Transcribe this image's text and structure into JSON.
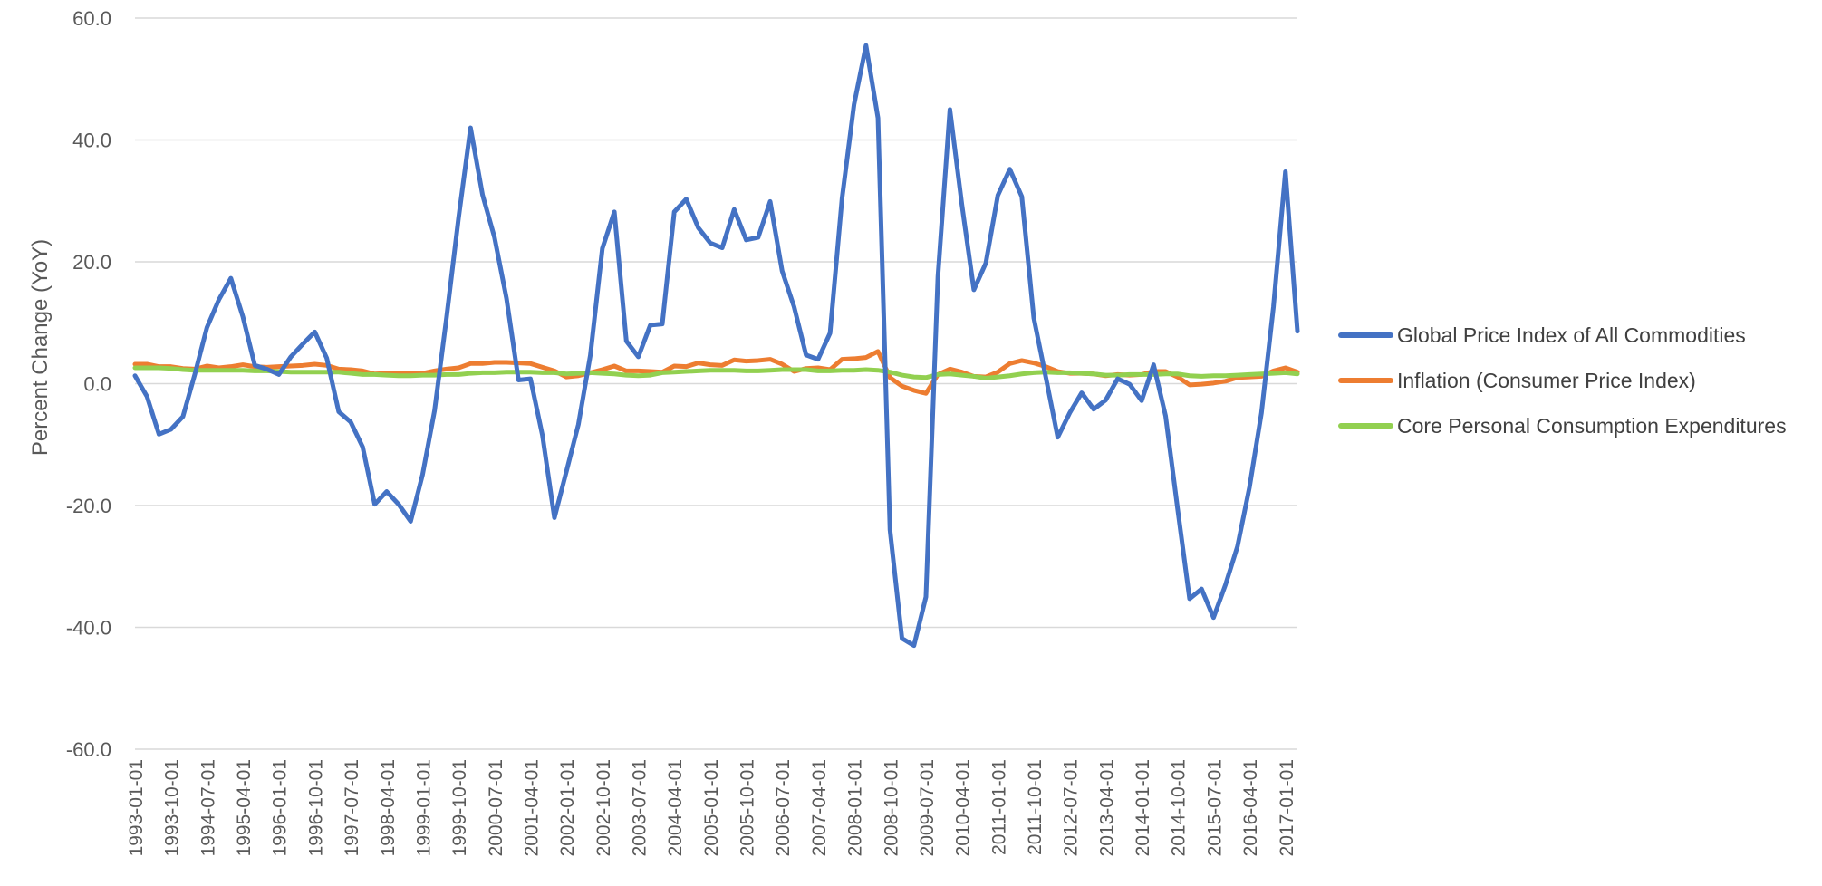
{
  "chart_data": {
    "type": "line",
    "title": "",
    "xlabel": "",
    "ylabel": "Percent Change (YoY)",
    "ylim": [
      -60,
      60
    ],
    "yticks": [
      -60.0,
      -40.0,
      -20.0,
      0.0,
      20.0,
      40.0,
      60.0
    ],
    "ytick_labels": [
      "-60.0",
      "-40.0",
      "-20.0",
      "0.0",
      "20.0",
      "40.0",
      "60.0"
    ],
    "grid": true,
    "legend_position": "right",
    "x": [
      "1993-01-01",
      "1993-04-01",
      "1993-07-01",
      "1993-10-01",
      "1994-01-01",
      "1994-04-01",
      "1994-07-01",
      "1994-10-01",
      "1995-01-01",
      "1995-04-01",
      "1995-07-01",
      "1995-10-01",
      "1996-01-01",
      "1996-04-01",
      "1996-07-01",
      "1996-10-01",
      "1997-01-01",
      "1997-04-01",
      "1997-07-01",
      "1997-10-01",
      "1998-01-01",
      "1998-04-01",
      "1998-07-01",
      "1998-10-01",
      "1999-01-01",
      "1999-04-01",
      "1999-07-01",
      "1999-10-01",
      "2000-01-01",
      "2000-04-01",
      "2000-07-01",
      "2000-10-01",
      "2001-01-01",
      "2001-04-01",
      "2001-07-01",
      "2001-10-01",
      "2002-01-01",
      "2002-04-01",
      "2002-07-01",
      "2002-10-01",
      "2003-01-01",
      "2003-04-01",
      "2003-07-01",
      "2003-10-01",
      "2004-01-01",
      "2004-04-01",
      "2004-07-01",
      "2004-10-01",
      "2005-01-01",
      "2005-04-01",
      "2005-07-01",
      "2005-10-01",
      "2006-01-01",
      "2006-04-01",
      "2006-07-01",
      "2006-10-01",
      "2007-01-01",
      "2007-04-01",
      "2007-07-01",
      "2007-10-01",
      "2008-01-01",
      "2008-04-01",
      "2008-07-01",
      "2008-10-01",
      "2009-01-01",
      "2009-04-01",
      "2009-07-01",
      "2009-10-01",
      "2010-01-01",
      "2010-04-01",
      "2010-07-01",
      "2010-10-01",
      "2011-01-01",
      "2011-04-01",
      "2011-07-01",
      "2011-10-01",
      "2012-01-01",
      "2012-04-01",
      "2012-07-01",
      "2012-10-01",
      "2013-01-01",
      "2013-04-01",
      "2013-07-01",
      "2013-10-01",
      "2014-01-01",
      "2014-04-01",
      "2014-07-01",
      "2014-10-01",
      "2015-01-01",
      "2015-04-01",
      "2015-07-01",
      "2015-10-01",
      "2016-01-01",
      "2016-04-01",
      "2016-07-01",
      "2016-10-01",
      "2017-01-01",
      "2017-04-01"
    ],
    "xtick_labels": [
      "1993-01-01",
      "1993-10-01",
      "1994-07-01",
      "1995-04-01",
      "1996-01-01",
      "1996-10-01",
      "1997-07-01",
      "1998-04-01",
      "1999-01-01",
      "1999-10-01",
      "2000-07-01",
      "2001-04-01",
      "2002-01-01",
      "2002-10-01",
      "2003-07-01",
      "2004-04-01",
      "2005-01-01",
      "2005-10-01",
      "2006-07-01",
      "2007-04-01",
      "2008-01-01",
      "2008-10-01",
      "2009-07-01",
      "2010-04-01",
      "2011-01-01",
      "2011-10-01",
      "2012-07-01",
      "2013-04-01",
      "2014-01-01",
      "2014-10-01",
      "2015-07-01",
      "2016-04-01",
      "2017-01-01"
    ],
    "series": [
      {
        "name": "Global Price Index of All Commodities",
        "color": "#4472C4",
        "values": [
          1.3,
          -2.1,
          -8.3,
          -7.5,
          -5.4,
          1.6,
          9.2,
          13.8,
          17.3,
          11.0,
          3.0,
          2.4,
          1.5,
          4.4,
          6.5,
          8.5,
          4.2,
          -4.6,
          -6.3,
          -10.4,
          -19.8,
          -17.7,
          -19.8,
          -22.6,
          -14.9,
          -4.4,
          10.9,
          27.2,
          42.0,
          31.0,
          24.0,
          14.0,
          0.6,
          0.8,
          -8.5,
          -22.0,
          -14.4,
          -6.7,
          4.7,
          22.2,
          28.2,
          7.0,
          4.4,
          9.6,
          9.8,
          28.2,
          30.3,
          25.6,
          23.1,
          22.3,
          28.6,
          23.6,
          24.0,
          29.9,
          18.5,
          12.6,
          4.7,
          4.0,
          8.3,
          30.4,
          45.8,
          55.5,
          43.6,
          -24.0,
          -41.8,
          -43.0,
          -35.0,
          17.6,
          45.0,
          29.4,
          15.4,
          19.8,
          30.9,
          35.2,
          30.7,
          10.8,
          1.1,
          -8.8,
          -4.8,
          -1.5,
          -4.2,
          -2.7,
          0.8,
          -0.1,
          -2.8,
          3.1,
          -5.3,
          -20.5,
          -35.3,
          -33.7,
          -38.4,
          -33.0,
          -26.7,
          -17.0,
          -4.8,
          12.6,
          34.8,
          8.6
        ]
      },
      {
        "name": "Inflation (Consumer Price Index)",
        "color": "#ED7D31",
        "values": [
          3.2,
          3.2,
          2.8,
          2.8,
          2.5,
          2.4,
          2.9,
          2.6,
          2.8,
          3.1,
          2.8,
          2.7,
          2.8,
          2.9,
          3.0,
          3.2,
          3.0,
          2.4,
          2.3,
          2.1,
          1.6,
          1.7,
          1.7,
          1.7,
          1.7,
          2.1,
          2.4,
          2.6,
          3.3,
          3.3,
          3.5,
          3.5,
          3.4,
          3.3,
          2.7,
          2.1,
          1.1,
          1.3,
          1.8,
          2.3,
          2.9,
          2.1,
          2.1,
          2.0,
          1.9,
          2.9,
          2.8,
          3.4,
          3.1,
          3.0,
          3.9,
          3.7,
          3.8,
          4.0,
          3.2,
          2.0,
          2.5,
          2.6,
          2.3,
          4.0,
          4.1,
          4.3,
          5.3,
          1.0,
          -0.4,
          -1.1,
          -1.6,
          1.5,
          2.4,
          1.9,
          1.2,
          1.1,
          1.9,
          3.3,
          3.8,
          3.4,
          2.8,
          2.0,
          1.7,
          1.7,
          1.6,
          1.3,
          1.5,
          1.4,
          1.5,
          2.0,
          2.0,
          1.1,
          -0.2,
          -0.1,
          0.1,
          0.4,
          1.0,
          1.1,
          1.2,
          2.1,
          2.6,
          1.9
        ]
      },
      {
        "name": "Core Personal Consumption Expenditures",
        "color": "#92D050",
        "values": [
          2.6,
          2.6,
          2.6,
          2.5,
          2.3,
          2.2,
          2.2,
          2.2,
          2.2,
          2.2,
          2.1,
          2.1,
          2.0,
          1.9,
          1.9,
          1.9,
          1.9,
          1.9,
          1.7,
          1.5,
          1.5,
          1.4,
          1.3,
          1.3,
          1.4,
          1.4,
          1.5,
          1.5,
          1.7,
          1.8,
          1.8,
          1.9,
          1.9,
          1.9,
          1.8,
          1.8,
          1.6,
          1.7,
          1.8,
          1.7,
          1.6,
          1.4,
          1.3,
          1.4,
          1.8,
          1.9,
          2.0,
          2.1,
          2.2,
          2.2,
          2.2,
          2.1,
          2.1,
          2.2,
          2.3,
          2.3,
          2.3,
          2.1,
          2.1,
          2.2,
          2.2,
          2.3,
          2.2,
          1.9,
          1.4,
          1.1,
          1.0,
          1.5,
          1.6,
          1.4,
          1.2,
          0.9,
          1.1,
          1.3,
          1.6,
          1.8,
          1.9,
          1.8,
          1.8,
          1.7,
          1.6,
          1.4,
          1.4,
          1.5,
          1.5,
          1.5,
          1.6,
          1.6,
          1.3,
          1.2,
          1.3,
          1.3,
          1.4,
          1.5,
          1.6,
          1.7,
          1.8,
          1.6
        ]
      }
    ]
  }
}
